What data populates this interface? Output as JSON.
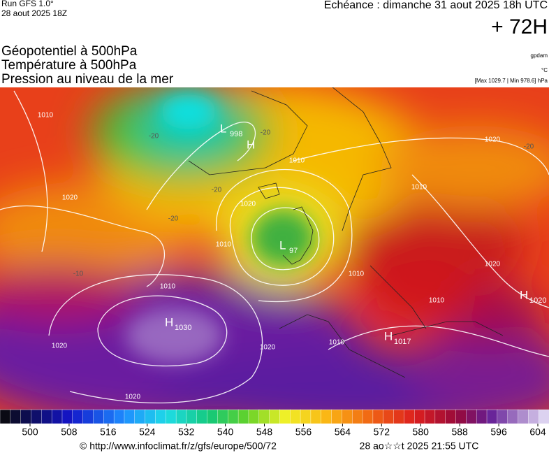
{
  "header": {
    "run": "Run GFS 1.0°",
    "date": "28 aout 2025 18Z",
    "valid": "Echéance : dimanche 31 aout 2025 18h UTC",
    "lead": "+ 72H"
  },
  "layers": [
    "Géopotentiel à 500hPa",
    "Température à 500hPa",
    "Pression au niveau de la mer"
  ],
  "units": {
    "geopotential": "gpdam",
    "temperature": "°C",
    "pressure": "[Max 1029.7 | Min 978.6] hPa"
  },
  "colorbar": {
    "ticks": [
      500,
      508,
      516,
      524,
      532,
      540,
      548,
      556,
      564,
      572,
      580,
      588,
      596,
      604
    ]
  },
  "map": {
    "centers": [
      {
        "kind": "L",
        "value": "998"
      },
      {
        "kind": "H",
        "value": null
      },
      {
        "kind": "L",
        "value": "97"
      },
      {
        "kind": "H",
        "value": "1030"
      },
      {
        "kind": "H",
        "value": "1017"
      },
      {
        "kind": "H",
        "value": "1020"
      }
    ],
    "isobar_labels": [
      "1010",
      "1020",
      "1010",
      "1020",
      "1020",
      "1020",
      "1020",
      "1010",
      "1010",
      "1010",
      "1010",
      "1010",
      "1010",
      "1020",
      "1020"
    ],
    "temp_labels": [
      "-20",
      "-20",
      "-20",
      "-20",
      "-20",
      "-10"
    ]
  },
  "footer": {
    "source": "© http://www.infoclimat.fr/z/gfs/europe/500/72",
    "generated": "28 ao☆☆t 2025 21:55 UTC"
  }
}
